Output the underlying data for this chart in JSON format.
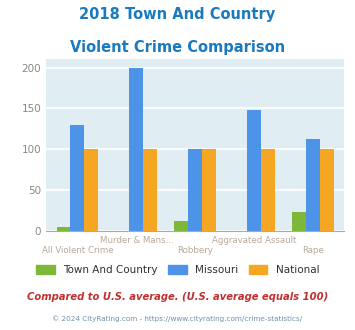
{
  "title_line1": "2018 Town And Country",
  "title_line2": "Violent Crime Comparison",
  "xlabel_top": [
    "",
    "Murder & Mans...",
    "",
    "Aggravated Assault",
    ""
  ],
  "xlabel_bottom": [
    "All Violent Crime",
    "",
    "Robbery",
    "",
    "Rape"
  ],
  "series": {
    "Town And Country": [
      5,
      0,
      12,
      0,
      23
    ],
    "Missouri": [
      130,
      200,
      100,
      148,
      112
    ],
    "National": [
      100,
      100,
      100,
      100,
      100
    ]
  },
  "colors": {
    "Town And Country": "#7db83a",
    "Missouri": "#4d94e8",
    "National": "#f5a623"
  },
  "ylim": [
    0,
    210
  ],
  "yticks": [
    0,
    50,
    100,
    150,
    200
  ],
  "bg_color": "#e0edf2",
  "title_color": "#1a7abf",
  "axis_label_color": "#b8a898",
  "footer_text": "Compared to U.S. average. (U.S. average equals 100)",
  "footer_color": "#c03030",
  "copyright_text": "© 2024 CityRating.com - https://www.cityrating.com/crime-statistics/",
  "copyright_color": "#7090b0"
}
